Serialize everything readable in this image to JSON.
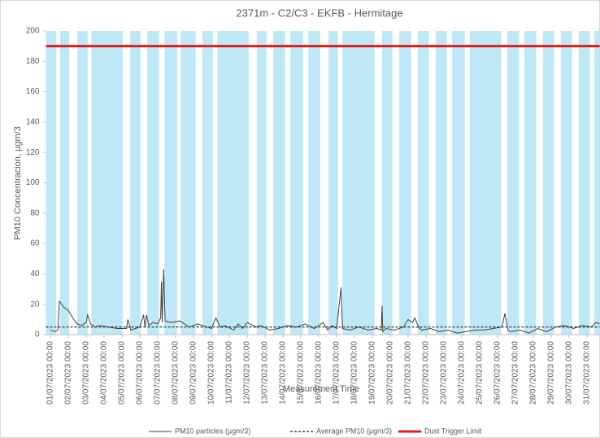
{
  "chart_data": {
    "type": "line",
    "title": "2371m - C2/C3 - EKFB - Hermitage",
    "xlabel": "Measurement Time",
    "ylabel": "PM10 Concentracion, µgm/3",
    "xlim": [
      "30/06/2023 18:00",
      "31/07/2023 17:00"
    ],
    "ylim": [
      0,
      200
    ],
    "yticks": [
      0,
      20,
      40,
      60,
      80,
      100,
      120,
      140,
      160,
      180,
      200
    ],
    "xticks": [
      "01/07/2023 00:00",
      "02/07/2023 00:00",
      "03/07/2023 00:00",
      "04/07/2023 00:00",
      "05/07/2023 00:00",
      "06/07/2023 00:00",
      "07/07/2023 00:00",
      "08/07/2023 00:00",
      "09/07/2023 00:00",
      "10/07/2023 00:00",
      "11/07/2023 00:00",
      "12/07/2023 00:00",
      "13/07/2023 00:00",
      "14/07/2023 00:00",
      "15/07/2023 00:00",
      "16/07/2023 00:00",
      "17/07/2023 00:00",
      "18/07/2023 00:00",
      "19/07/2023 00:00",
      "20/07/2023 00:00",
      "21/07/2023 00:00",
      "22/07/2023 00:00",
      "23/07/2023 00:00",
      "24/07/2023 00:00",
      "25/07/2023 00:00",
      "26/07/2023 00:00",
      "27/07/2023 00:00",
      "28/07/2023 00:00",
      "29/07/2023 00:00",
      "30/07/2023 00:00",
      "31/07/2023 00:00"
    ],
    "shade_color": "#bfe8f7",
    "shaded_periods": [
      [
        "30/06/2023 18:00",
        "01/07/2023 08:00"
      ],
      [
        "01/07/2023 13:00",
        "02/07/2023 01:00"
      ],
      [
        "02/07/2023 12:00",
        "03/07/2023 02:00"
      ],
      [
        "03/07/2023 07:00",
        "05/07/2023 01:00"
      ],
      [
        "05/07/2023 11:00",
        "06/07/2023 01:00"
      ],
      [
        "06/07/2023 10:00",
        "07/07/2023 02:00"
      ],
      [
        "07/07/2023 09:00",
        "08/07/2023 02:00"
      ],
      [
        "08/07/2023 07:00",
        "09/07/2023 03:00"
      ],
      [
        "09/07/2023 12:00",
        "10/07/2023 02:00"
      ],
      [
        "10/07/2023 08:00",
        "12/07/2023 02:00"
      ],
      [
        "12/07/2023 13:00",
        "13/07/2023 02:00"
      ],
      [
        "13/07/2023 11:00",
        "14/07/2023 03:00"
      ],
      [
        "14/07/2023 10:00",
        "15/07/2023 03:00"
      ],
      [
        "15/07/2023 10:00",
        "16/07/2023 02:00"
      ],
      [
        "16/07/2023 13:00",
        "17/07/2023 02:00"
      ],
      [
        "17/07/2023 08:00",
        "19/07/2023 03:00"
      ],
      [
        "19/07/2023 13:00",
        "20/07/2023 03:00"
      ],
      [
        "20/07/2023 12:00",
        "21/07/2023 04:00"
      ],
      [
        "21/07/2023 13:00",
        "22/07/2023 04:00"
      ],
      [
        "22/07/2023 13:00",
        "23/07/2023 04:00"
      ],
      [
        "23/07/2023 11:00",
        "24/07/2023 04:00"
      ],
      [
        "24/07/2023 11:00",
        "26/07/2023 05:00"
      ],
      [
        "26/07/2023 13:00",
        "27/07/2023 05:00"
      ],
      [
        "27/07/2023 12:00",
        "28/07/2023 04:00"
      ],
      [
        "28/07/2023 13:00",
        "29/07/2023 04:00"
      ],
      [
        "29/07/2023 13:00",
        "30/07/2023 04:00"
      ],
      [
        "30/07/2023 13:00",
        "31/07/2023 04:00"
      ],
      [
        "31/07/2023 10:00",
        "31/07/2023 17:00"
      ]
    ],
    "series": [
      {
        "name": "PM10 particles (µgm/3)",
        "color": "#404040",
        "x": [
          "01/07/2023 00:00",
          "01/07/2023 06:00",
          "01/07/2023 10:00",
          "01/07/2023 12:00",
          "01/07/2023 18:00",
          "02/07/2023 00:00",
          "02/07/2023 06:00",
          "02/07/2023 12:00",
          "02/07/2023 18:00",
          "03/07/2023 00:00",
          "03/07/2023 02:00",
          "03/07/2023 06:00",
          "03/07/2023 12:00",
          "03/07/2023 18:00",
          "04/07/2023 06:00",
          "04/07/2023 18:00",
          "05/07/2023 06:00",
          "05/07/2023 08:00",
          "05/07/2023 12:00",
          "05/07/2023 18:00",
          "06/07/2023 00:00",
          "06/07/2023 05:00",
          "06/07/2023 07:00",
          "06/07/2023 09:00",
          "06/07/2023 12:00",
          "06/07/2023 18:00",
          "07/07/2023 00:00",
          "07/07/2023 04:00",
          "07/07/2023 05:00",
          "07/07/2023 06:00",
          "07/07/2023 08:00",
          "07/07/2023 10:00",
          "07/07/2023 18:00",
          "08/07/2023 06:00",
          "08/07/2023 18:00",
          "09/07/2023 06:00",
          "09/07/2023 18:00",
          "10/07/2023 00:00",
          "10/07/2023 06:00",
          "10/07/2023 12:00",
          "10/07/2023 18:00",
          "11/07/2023 06:00",
          "11/07/2023 12:00",
          "11/07/2023 18:00",
          "12/07/2023 00:00",
          "12/07/2023 12:00",
          "12/07/2023 18:00",
          "13/07/2023 06:00",
          "13/07/2023 18:00",
          "14/07/2023 06:00",
          "14/07/2023 18:00",
          "15/07/2023 06:00",
          "15/07/2023 18:00",
          "16/07/2023 06:00",
          "16/07/2023 12:00",
          "16/07/2023 18:00",
          "17/07/2023 00:00",
          "17/07/2023 06:00",
          "17/07/2023 08:00",
          "17/07/2023 18:00",
          "18/07/2023 06:00",
          "18/07/2023 18:00",
          "19/07/2023 06:00",
          "19/07/2023 12:00",
          "19/07/2023 13:00",
          "19/07/2023 14:00",
          "19/07/2023 18:00",
          "20/07/2023 06:00",
          "20/07/2023 18:00",
          "21/07/2023 00:00",
          "21/07/2023 06:00",
          "21/07/2023 09:00",
          "21/07/2023 14:00",
          "21/07/2023 18:00",
          "22/07/2023 06:00",
          "22/07/2023 18:00",
          "23/07/2023 06:00",
          "23/07/2023 18:00",
          "24/07/2023 06:00",
          "24/07/2023 18:00",
          "25/07/2023 06:00",
          "25/07/2023 18:00",
          "26/07/2023 06:00",
          "26/07/2023 10:00",
          "26/07/2023 14:00",
          "26/07/2023 18:00",
          "27/07/2023 06:00",
          "27/07/2023 18:00",
          "28/07/2023 06:00",
          "28/07/2023 18:00",
          "29/07/2023 06:00",
          "29/07/2023 18:00",
          "30/07/2023 06:00",
          "30/07/2023 18:00",
          "31/07/2023 06:00",
          "31/07/2023 12:00",
          "31/07/2023 17:00"
        ],
        "values": [
          3,
          2,
          3,
          22,
          18,
          16,
          11,
          7,
          6,
          8,
          13,
          7,
          5,
          6,
          5,
          4,
          4,
          10,
          3,
          4,
          5,
          13,
          5,
          13,
          6,
          8,
          7,
          11,
          35,
          8,
          43,
          9,
          8,
          9,
          5,
          7,
          5,
          4,
          11,
          5,
          6,
          3,
          7,
          4,
          8,
          5,
          6,
          3,
          4,
          6,
          5,
          7,
          4,
          8,
          3,
          6,
          4,
          31,
          4,
          3,
          5,
          3,
          4,
          3,
          19,
          2,
          4,
          3,
          5,
          10,
          8,
          11,
          5,
          3,
          4,
          2,
          3,
          1,
          2,
          3,
          3,
          4,
          5,
          14,
          3,
          2,
          3,
          1,
          4,
          2,
          5,
          6,
          4,
          6,
          5,
          8,
          7
        ]
      },
      {
        "name": "Average PM10 (µgm/3)",
        "color": "#222222",
        "dash": true,
        "value": 5
      },
      {
        "name": "Dust Trigger Limit",
        "color": "#e31a1c",
        "value": 190
      }
    ]
  }
}
